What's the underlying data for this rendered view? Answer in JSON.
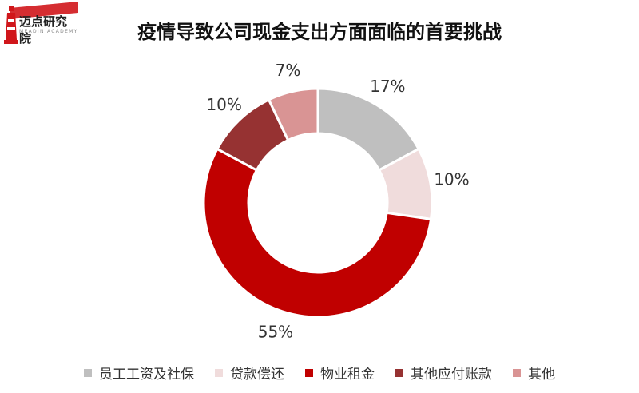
{
  "logo": {
    "brand_text": "迈点研究院",
    "brand_sub": "MEADIN ACADEMY",
    "color": "#d0161b"
  },
  "chart_data": {
    "type": "pie",
    "title": "疫情导致公司现金支出方面面临的首要挑战",
    "categories": [
      "员工工资及社保",
      "贷款偿还",
      "物业租金",
      "其他应付账款",
      "其他"
    ],
    "values": [
      17,
      10,
      55,
      10,
      7
    ],
    "labels": [
      "17%",
      "10%",
      "55%",
      "10%",
      "7%"
    ],
    "colors": [
      "#bfbfbf",
      "#f0dcdc",
      "#c00000",
      "#963232",
      "#d99494"
    ],
    "donut": true,
    "legend_position": "bottom"
  }
}
